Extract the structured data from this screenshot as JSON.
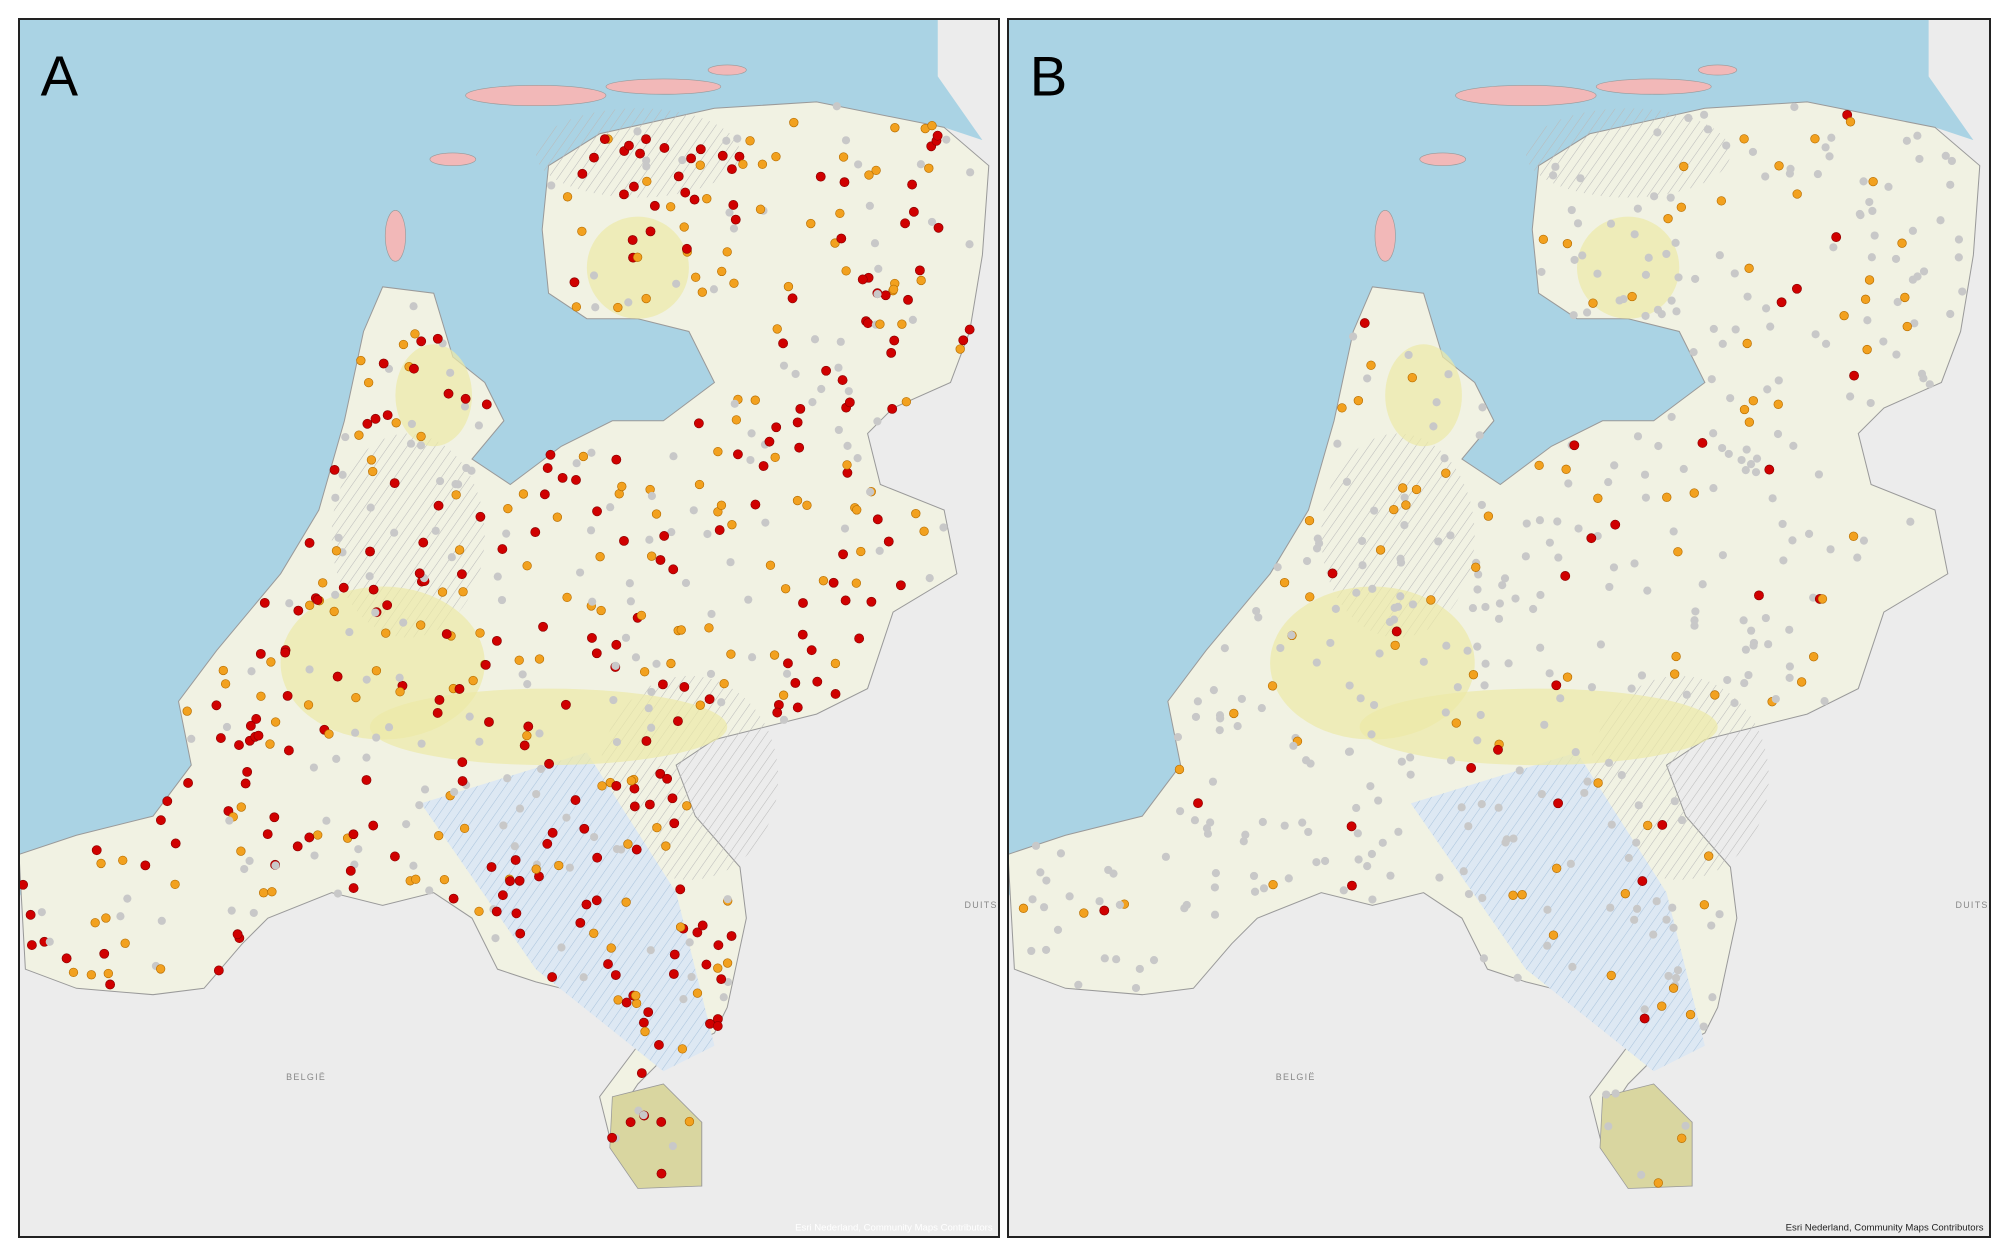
{
  "panels": [
    {
      "label": "A",
      "country_south": "BELGIË",
      "country_east": "DUITSLAND",
      "attribution": "Esri Nederland, Community Maps Contributors"
    },
    {
      "label": "B",
      "country_south": "BELGIË",
      "country_east": "DUITSLAND",
      "attribution": "Esri Nederland, Community Maps Contributors"
    }
  ]
}
